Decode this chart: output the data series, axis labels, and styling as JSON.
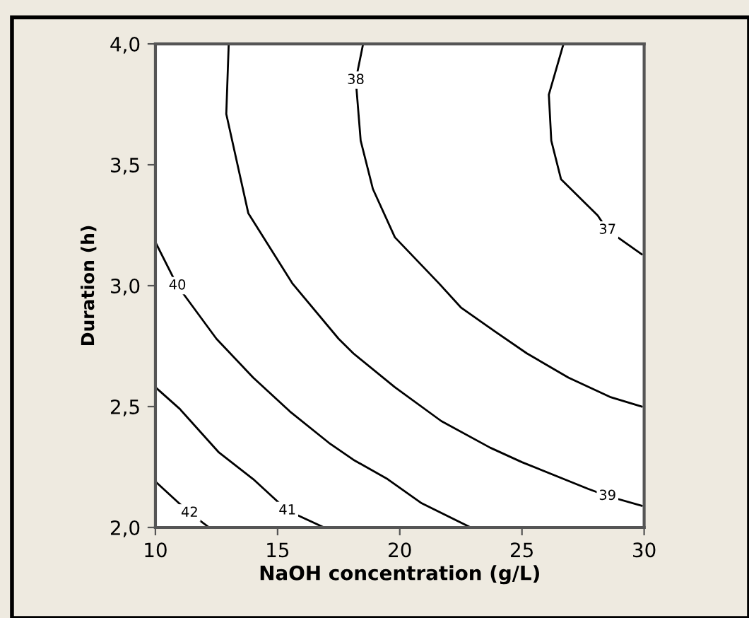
{
  "chart_data": {
    "type": "line",
    "xlabel": "NaOH concentration (g/L)",
    "ylabel": "Duration (h)",
    "xlim": [
      10,
      30
    ],
    "xticks": [
      10,
      15,
      20,
      25,
      30
    ],
    "ylim": [
      2.0,
      4.0
    ],
    "yticks": [
      {
        "value": 2.0,
        "label": "2,0"
      },
      {
        "value": 2.5,
        "label": "2,5"
      },
      {
        "value": 3.0,
        "label": "3,0"
      },
      {
        "value": 3.5,
        "label": "3,5"
      },
      {
        "value": 4.0,
        "label": "4,0"
      }
    ],
    "marker": "none",
    "line_style": "solid",
    "series": [
      {
        "color": "#000000",
        "x": [
          10,
          11.4,
          12.2
        ],
        "values": [
          2.19,
          2.06,
          2.0
        ]
      },
      {
        "color": "#000000",
        "x": [
          10,
          11,
          12.6,
          14,
          15.4,
          16.9
        ],
        "values": [
          2.58,
          2.49,
          2.31,
          2.2,
          2.07,
          2.0
        ]
      },
      {
        "color": "#000000",
        "x": [
          10,
          10.9,
          12.5,
          14,
          15.5,
          17.1,
          18.1,
          19.5,
          20.9,
          22.9
        ],
        "values": [
          3.18,
          3.0,
          2.78,
          2.62,
          2.48,
          2.35,
          2.28,
          2.2,
          2.1,
          2.0
        ]
      },
      {
        "color": "#000000",
        "x": [
          13.0,
          12.9,
          13.8,
          15.6,
          17.5,
          18.1,
          19.8,
          21.7,
          23.7,
          25.0,
          27.7,
          28.5,
          29.9
        ],
        "values": [
          4.0,
          3.71,
          3.3,
          3.01,
          2.78,
          2.72,
          2.58,
          2.44,
          2.33,
          2.27,
          2.16,
          2.13,
          2.09
        ]
      },
      {
        "color": "#000000",
        "x": [
          18.5,
          18.2,
          18.4,
          18.9,
          19.8,
          21.6,
          22.5,
          23.9,
          25.2,
          26.9,
          28.6,
          29.9
        ],
        "values": [
          4.0,
          3.85,
          3.6,
          3.4,
          3.2,
          3.01,
          2.91,
          2.81,
          2.72,
          2.62,
          2.54,
          2.5
        ]
      },
      {
        "color": "#000000",
        "x": [
          26.7,
          26.1,
          26.2,
          26.6,
          28.1,
          28.5,
          29.9
        ],
        "values": [
          4.0,
          3.79,
          3.6,
          3.44,
          3.29,
          3.23,
          3.13
        ]
      }
    ],
    "annotations": [
      {
        "text": "42",
        "x": 11.4,
        "y": 2.06
      },
      {
        "text": "41",
        "x": 15.4,
        "y": 2.07
      },
      {
        "text": "40",
        "x": 10.9,
        "y": 3.0
      },
      {
        "text": "39",
        "x": 28.5,
        "y": 2.13
      },
      {
        "text": "38",
        "x": 18.2,
        "y": 3.85
      },
      {
        "text": "37",
        "x": 28.5,
        "y": 3.23
      }
    ]
  }
}
